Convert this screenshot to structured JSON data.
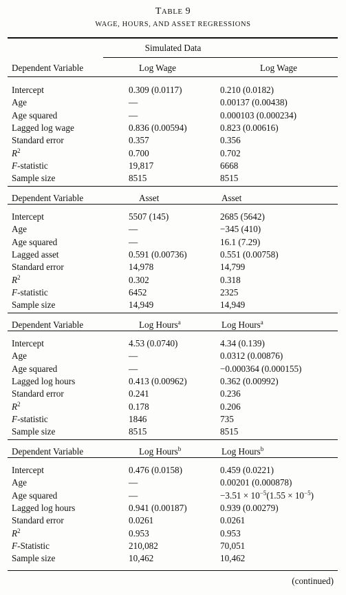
{
  "title": "Table 9",
  "subtitle": "WAGE, HOURS, AND ASSET REGRESSIONS",
  "simulated_header": "Simulated Data",
  "panels": [
    {
      "dep_label": "Dependent Variable",
      "col1": "Log Wage",
      "col2": "Log Wage",
      "rows": [
        {
          "label": "Intercept",
          "v1": "0.309 (0.0117)",
          "v2": "0.210 (0.0182)"
        },
        {
          "label": "Age",
          "v1": "—",
          "v2": "0.00137 (0.00438)"
        },
        {
          "label": "Age squared",
          "v1": "—",
          "v2": "0.000103 (0.000234)"
        },
        {
          "label": "Lagged log wage",
          "v1": "0.836 (0.00594)",
          "v2": "0.823 (0.00616)"
        },
        {
          "label": "Standard error",
          "v1": "0.357",
          "v2": "0.356"
        },
        {
          "label": "R2",
          "v1": "0.700",
          "v2": "0.702"
        },
        {
          "label": "F-statistic",
          "v1": "19,817",
          "v2": "6668"
        },
        {
          "label": "Sample size",
          "v1": "8515",
          "v2": "8515"
        }
      ]
    },
    {
      "dep_label": "Dependent Variable",
      "col1": "Asset",
      "col2": "Asset",
      "rows": [
        {
          "label": "Intercept",
          "v1": "5507 (145)",
          "v2": "2685 (5642)"
        },
        {
          "label": "Age",
          "v1": "—",
          "v2": "−345 (410)"
        },
        {
          "label": "Age squared",
          "v1": "—",
          "v2": "16.1 (7.29)"
        },
        {
          "label": "Lagged asset",
          "v1": "0.591 (0.00736)",
          "v2": "0.551 (0.00758)"
        },
        {
          "label": "Standard error",
          "v1": "14,978",
          "v2": "14,799"
        },
        {
          "label": "R2",
          "v1": "0.302",
          "v2": "0.318"
        },
        {
          "label": "F-statistic",
          "v1": "6452",
          "v2": "2325"
        },
        {
          "label": "Sample size",
          "v1": "14,949",
          "v2": "14,949"
        }
      ]
    },
    {
      "dep_label": "Dependent Variable",
      "col1": "Log Hours",
      "col1_sup": "a",
      "col2": "Log Hours",
      "col2_sup": "a",
      "rows": [
        {
          "label": "Intercept",
          "v1": "4.53 (0.0740)",
          "v2": "4.34 (0.139)"
        },
        {
          "label": "Age",
          "v1": "—",
          "v2": "0.0312 (0.00876)"
        },
        {
          "label": "Age squared",
          "v1": "—",
          "v2": "−0.000364 (0.000155)"
        },
        {
          "label": "Lagged log hours",
          "v1": "0.413 (0.00962)",
          "v2": "0.362 (0.00992)"
        },
        {
          "label": "Standard error",
          "v1": "0.241",
          "v2": "0.236"
        },
        {
          "label": "R2",
          "v1": "0.178",
          "v2": "0.206"
        },
        {
          "label": "F-statistic",
          "v1": "1846",
          "v2": "735"
        },
        {
          "label": "Sample size",
          "v1": "8515",
          "v2": "8515"
        }
      ]
    },
    {
      "dep_label": "Dependent Variable",
      "col1": "Log Hours",
      "col1_sup": "b",
      "col2": "Log Hours",
      "col2_sup": "b",
      "rows": [
        {
          "label": "Intercept",
          "v1": "0.476 (0.0158)",
          "v2": "0.459 (0.0221)"
        },
        {
          "label": "Age",
          "v1": "—",
          "v2": "0.00201 (0.000878)"
        },
        {
          "label": "Age squared",
          "v1": "—",
          "v2": "−3.51 × 10−5(1.55 × 10−5)"
        },
        {
          "label": "Lagged log hours",
          "v1": "0.941 (0.00187)",
          "v2": "0.939 (0.00279)"
        },
        {
          "label": "Standard error",
          "v1": "0.0261",
          "v2": "0.0261"
        },
        {
          "label": "R2",
          "v1": "0.953",
          "v2": "0.953"
        },
        {
          "label": "F-Statistic",
          "v1": "210,082",
          "v2": "70,051"
        },
        {
          "label": "Sample size",
          "v1": "10,462",
          "v2": "10,462"
        }
      ]
    }
  ],
  "footer": "(continued)"
}
